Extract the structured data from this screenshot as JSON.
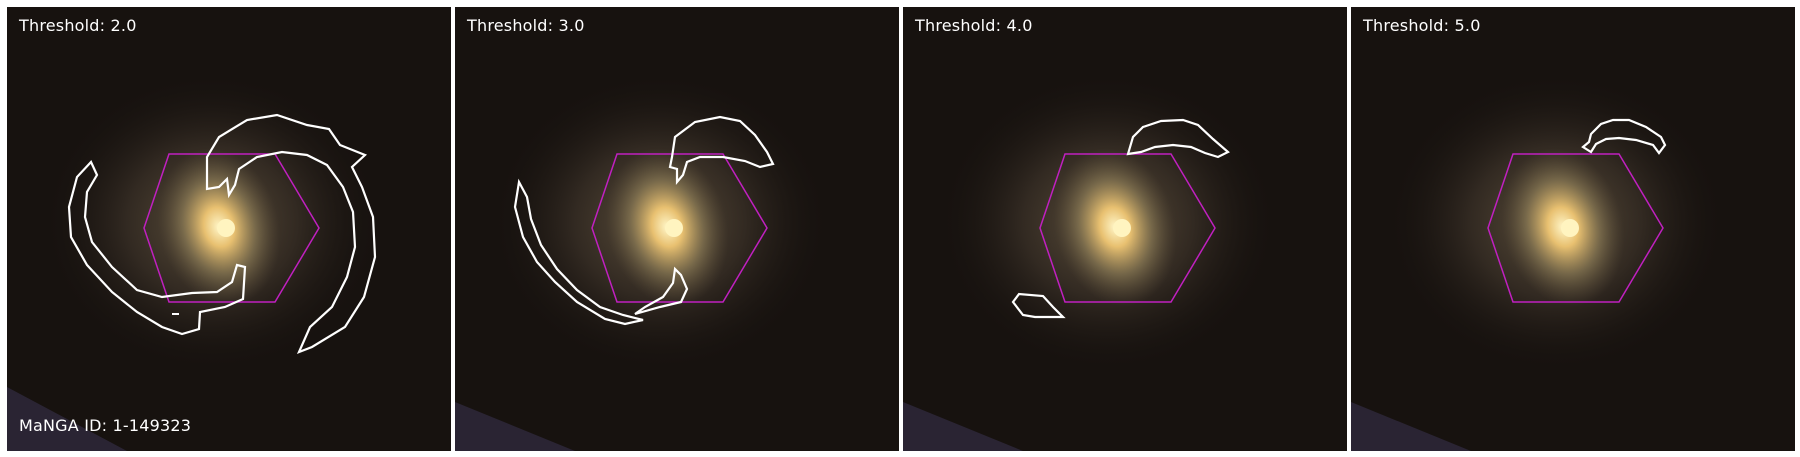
{
  "figure": {
    "panels": [
      {
        "threshold_label": "Threshold: 2.0",
        "threshold": 2.0
      },
      {
        "threshold_label": "Threshold: 3.0",
        "threshold": 3.0
      },
      {
        "threshold_label": "Threshold: 4.0",
        "threshold": 4.0
      },
      {
        "threshold_label": "Threshold: 5.0",
        "threshold": 5.0
      }
    ],
    "galaxy_id_label": "MaNGA ID: 1-149323"
  },
  "colors": {
    "background": "#ffffff",
    "sky": "#17120f",
    "contour": "#ffffff",
    "ifu_hexagon": "#c020c0",
    "galaxy_core": "#fff2b0",
    "galaxy_disk": "#8a7a55",
    "text": "#ffffff"
  },
  "overlays": {
    "contour": "white contour outlines of spiral arm segments",
    "ifu_footprint": "magenta hexagon centered on galaxy"
  }
}
